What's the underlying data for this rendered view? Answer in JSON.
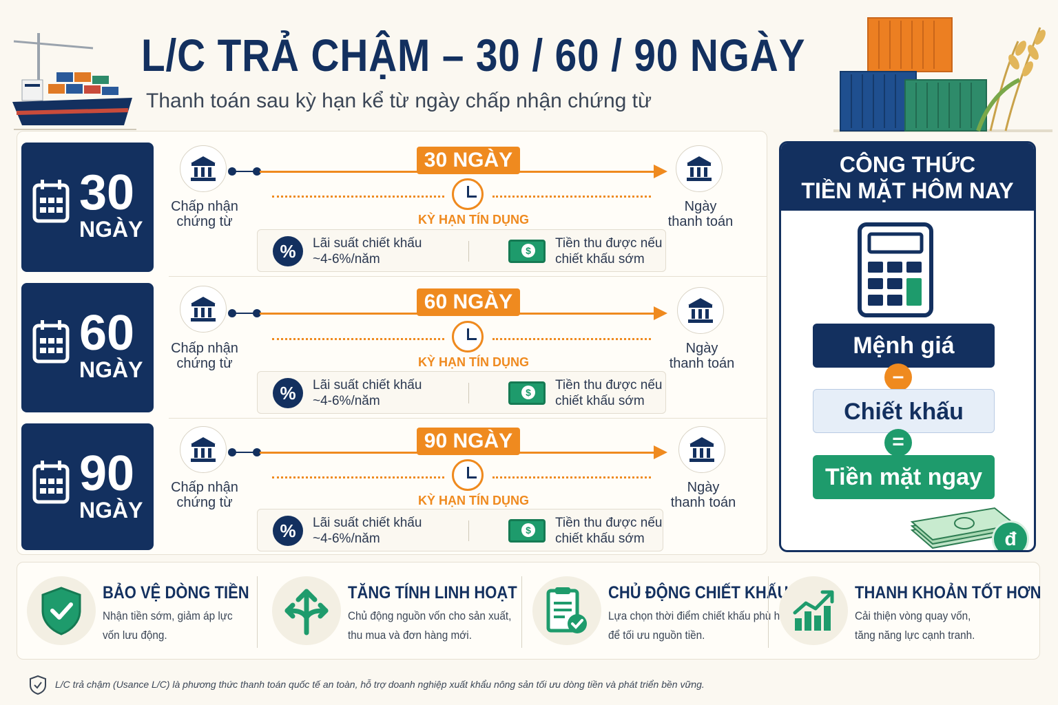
{
  "header": {
    "title": "L/C TRẢ CHẬM – 30 / 60 / 90 NGÀY",
    "subtitle": "Thanh toán sau kỳ hạn kể từ ngày chấp nhận chứng từ"
  },
  "colors": {
    "navy": "#13305f",
    "orange": "#ef8a1f",
    "green": "#1e9b6c",
    "cream": "#fbf8f1"
  },
  "rows": [
    {
      "num": "30",
      "unit": "NGÀY",
      "start_label_1": "Chấp nhận",
      "start_label_2": "chứng từ",
      "term": "30 NGÀY",
      "term_caption": "KỲ HẠN TÍN DỤNG",
      "end_label_1": "Ngày",
      "end_label_2": "thanh toán",
      "rate_1": "Lãi suất chiết khấu",
      "rate_2": "~4-6%/năm",
      "proceeds_1": "Tiền thu được nếu",
      "proceeds_2": "chiết khấu sớm"
    },
    {
      "num": "60",
      "unit": "NGÀY",
      "start_label_1": "Chấp nhận",
      "start_label_2": "chứng từ",
      "term": "60 NGÀY",
      "term_caption": "KỲ HẠN TÍN DỤNG",
      "end_label_1": "Ngày",
      "end_label_2": "thanh toán",
      "rate_1": "Lãi suất chiết khấu",
      "rate_2": "~4-6%/năm",
      "proceeds_1": "Tiền thu được nếu",
      "proceeds_2": "chiết khấu sớm"
    },
    {
      "num": "90",
      "unit": "NGÀY",
      "start_label_1": "Chấp nhận",
      "start_label_2": "chứng từ",
      "term": "90 NGÀY",
      "term_caption": "KỲ HẠN TÍN DỤNG",
      "end_label_1": "Ngày",
      "end_label_2": "thanh toán",
      "rate_1": "Lãi suất chiết khấu",
      "rate_2": "~4-6%/năm",
      "proceeds_1": "Tiền thu được nếu",
      "proceeds_2": "chiết khấu sớm"
    }
  ],
  "formula": {
    "title_1": "CÔNG THỨC",
    "title_2": "TIỀN MẶT HÔM NAY",
    "face_value": "Mệnh giá",
    "minus": "–",
    "discount": "Chiết khấu",
    "equals": "=",
    "cash_now": "Tiền mặt ngay",
    "currency": "đ"
  },
  "benefits": [
    {
      "icon": "shield-check-icon",
      "title": "BẢO VỆ DÒNG TIỀN",
      "desc_1": "Nhận tiền sớm, giảm áp lực",
      "desc_2": "vốn lưu động."
    },
    {
      "icon": "split-arrows-icon",
      "title": "TĂNG TÍNH LINH HOẠT",
      "desc_1": "Chủ động nguồn vốn cho sản xuất,",
      "desc_2": "thu mua và đơn hàng mới."
    },
    {
      "icon": "clipboard-check-icon",
      "title": "CHỦ ĐỘNG CHIẾT KHẤU",
      "desc_1": "Lựa chọn thời điểm chiết khấu phù hợp",
      "desc_2": "để tối ưu nguồn tiền."
    },
    {
      "icon": "growth-chart-icon",
      "title": "THANH KHOẢN TỐT HƠN",
      "desc_1": "Cải thiện vòng quay vốn,",
      "desc_2": "tăng năng lực cạnh tranh."
    }
  ],
  "footer": "L/C trả chậm (Usance L/C) là phương thức thanh toán quốc tế an toàn, hỗ trợ doanh nghiệp xuất khẩu nông sản tối ưu dòng tiền và phát triển bền vững."
}
